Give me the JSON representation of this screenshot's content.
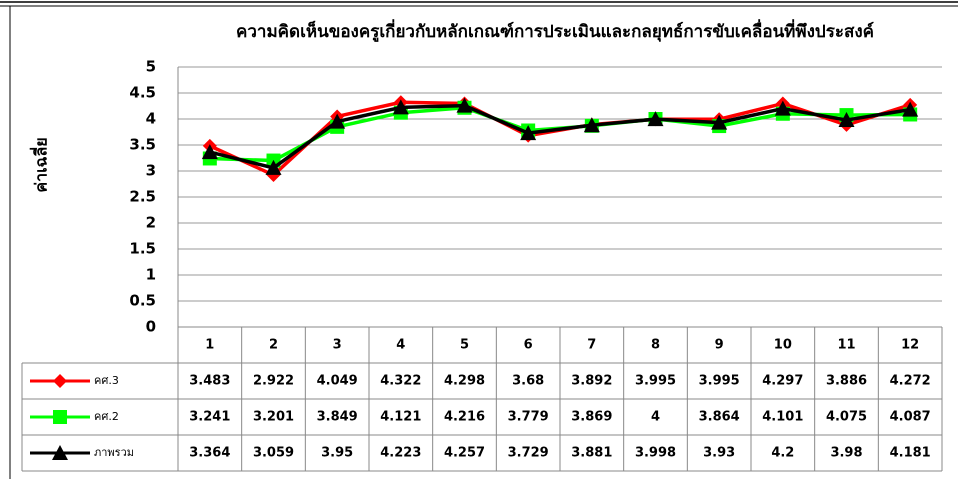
{
  "chart_data": {
    "type": "line",
    "title": "ความคิดเห็นของครูเกี่ยวกับหลักเกณฑ์การประเมินและกลยุทธ์การขับเคลื่อนที่พึงประสงค์",
    "y_label": "ค่าเฉลี่ย",
    "categories": [
      "1",
      "2",
      "3",
      "4",
      "5",
      "6",
      "7",
      "8",
      "9",
      "10",
      "11",
      "12"
    ],
    "series": [
      {
        "name": "คศ.3",
        "color": "#ff0000",
        "marker": "diamond",
        "values": [
          3.483,
          2.922,
          4.049,
          4.322,
          4.298,
          3.68,
          3.892,
          3.995,
          3.995,
          4.297,
          3.886,
          4.272
        ]
      },
      {
        "name": "คศ.2",
        "color": "#00ff00",
        "marker": "square",
        "values": [
          3.241,
          3.201,
          3.849,
          4.121,
          4.216,
          3.779,
          3.869,
          4,
          3.864,
          4.101,
          4.075,
          4.087
        ]
      },
      {
        "name": "ภาพรวม",
        "color": "#000000",
        "marker": "triangle",
        "values": [
          3.364,
          3.059,
          3.95,
          4.223,
          4.257,
          3.729,
          3.881,
          3.998,
          3.93,
          4.2,
          3.98,
          4.181
        ]
      }
    ],
    "ylim": [
      0,
      5
    ],
    "yticks": [
      0,
      0.5,
      1,
      1.5,
      2,
      2.5,
      3,
      3.5,
      4,
      4.5,
      5
    ],
    "grid": true
  }
}
